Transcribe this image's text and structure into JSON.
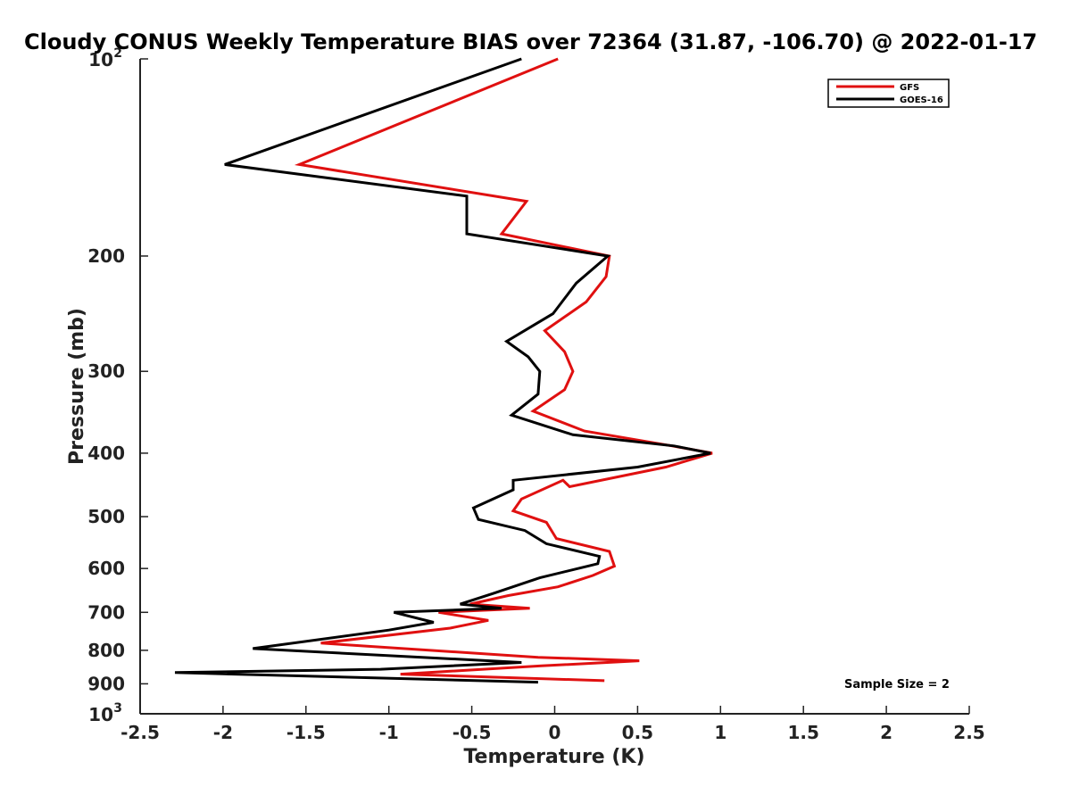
{
  "chart_data": {
    "type": "line",
    "title": "Cloudy CONUS Weekly Temperature BIAS over 72364 (31.87, -106.70) @ 2022-01-17",
    "xlabel": "Temperature (K)",
    "ylabel": "Pressure (mb)",
    "xlim": [
      -2.5,
      2.5
    ],
    "ylim": [
      1000,
      100
    ],
    "y_scale": "log",
    "x_ticks": [
      "-2.5",
      "-2",
      "-1.5",
      "-1",
      "-0.5",
      "0",
      "0.5",
      "1",
      "1.5",
      "2",
      "2.5"
    ],
    "y_ticks": [
      {
        "value": 100,
        "base": "10",
        "exp": "2"
      },
      {
        "value": 200,
        "label": "200"
      },
      {
        "value": 300,
        "label": "300"
      },
      {
        "value": 400,
        "label": "400"
      },
      {
        "value": 500,
        "label": "500"
      },
      {
        "value": 600,
        "label": "600"
      },
      {
        "value": 700,
        "label": "700"
      },
      {
        "value": 800,
        "label": "800"
      },
      {
        "value": 900,
        "label": "900"
      },
      {
        "value": 1000,
        "base": "10",
        "exp": "3"
      }
    ],
    "legend": {
      "position": "top-right"
    },
    "annotation": "Sample Size = 2",
    "series": [
      {
        "name": "GFS",
        "color": "#e01010",
        "points": [
          [
            0.02,
            100
          ],
          [
            -1.54,
            145
          ],
          [
            -0.17,
            165
          ],
          [
            -0.32,
            185
          ],
          [
            0.33,
            200
          ],
          [
            0.31,
            215
          ],
          [
            0.19,
            235
          ],
          [
            -0.06,
            260
          ],
          [
            0.06,
            280
          ],
          [
            0.11,
            300
          ],
          [
            0.06,
            320
          ],
          [
            -0.13,
            345
          ],
          [
            0.18,
            370
          ],
          [
            0.71,
            390
          ],
          [
            0.95,
            400
          ],
          [
            0.67,
            420
          ],
          [
            0.09,
            450
          ],
          [
            0.05,
            440
          ],
          [
            -0.2,
            470
          ],
          [
            -0.25,
            490
          ],
          [
            -0.05,
            510
          ],
          [
            0.01,
            540
          ],
          [
            0.33,
            565
          ],
          [
            0.36,
            595
          ],
          [
            0.23,
            615
          ],
          [
            0.02,
            640
          ],
          [
            -0.28,
            660
          ],
          [
            -0.51,
            680
          ],
          [
            -0.15,
            690
          ],
          [
            -0.7,
            700
          ],
          [
            -0.4,
            720
          ],
          [
            -0.63,
            740
          ],
          [
            -1.41,
            780
          ],
          [
            -0.1,
            820
          ],
          [
            0.51,
            830
          ],
          [
            -0.08,
            845
          ],
          [
            -0.93,
            870
          ],
          [
            0.3,
            890
          ]
        ]
      },
      {
        "name": "GOES-16",
        "color": "#000000",
        "points": [
          [
            -0.2,
            100
          ],
          [
            -1.99,
            145
          ],
          [
            -0.53,
            162
          ],
          [
            -0.53,
            185
          ],
          [
            0.32,
            200
          ],
          [
            0.13,
            220
          ],
          [
            -0.01,
            245
          ],
          [
            -0.29,
            270
          ],
          [
            -0.16,
            285
          ],
          [
            -0.09,
            300
          ],
          [
            -0.1,
            325
          ],
          [
            -0.26,
            350
          ],
          [
            0.11,
            375
          ],
          [
            0.72,
            390
          ],
          [
            0.94,
            400
          ],
          [
            0.5,
            420
          ],
          [
            -0.25,
            440
          ],
          [
            -0.25,
            455
          ],
          [
            -0.49,
            485
          ],
          [
            -0.46,
            505
          ],
          [
            -0.18,
            525
          ],
          [
            -0.05,
            550
          ],
          [
            0.27,
            575
          ],
          [
            0.26,
            590
          ],
          [
            -0.09,
            620
          ],
          [
            -0.37,
            655
          ],
          [
            -0.57,
            680
          ],
          [
            -0.32,
            690
          ],
          [
            -0.97,
            700
          ],
          [
            -0.73,
            725
          ],
          [
            -1.0,
            745
          ],
          [
            -1.82,
            795
          ],
          [
            -0.2,
            835
          ],
          [
            -1.05,
            855
          ],
          [
            -2.29,
            865
          ],
          [
            -0.1,
            895
          ]
        ]
      }
    ]
  }
}
